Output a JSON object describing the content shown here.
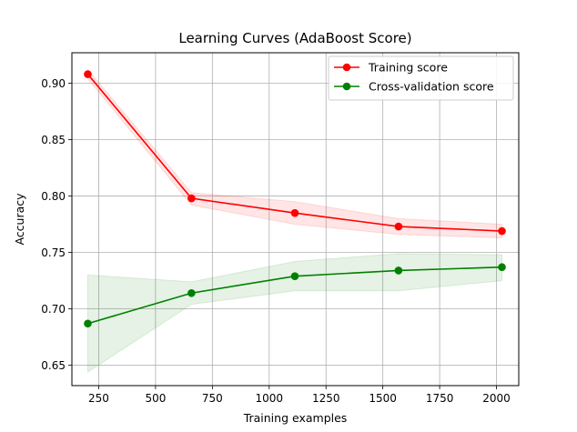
{
  "chart_data": {
    "type": "line",
    "title": "Learning Curves (AdaBoost Score)",
    "xlabel": "Training examples",
    "ylabel": "Accuracy",
    "xlim": [
      132,
      2098
    ],
    "ylim": [
      0.632,
      0.927
    ],
    "xticks": [
      250,
      500,
      750,
      1000,
      1250,
      1500,
      1750,
      2000
    ],
    "xtick_labels": [
      "250",
      "500",
      "750",
      "1000",
      "1250",
      "1500",
      "1750",
      "2000"
    ],
    "yticks": [
      0.65,
      0.7,
      0.75,
      0.8,
      0.85,
      0.9
    ],
    "ytick_labels": [
      "0.65",
      "0.70",
      "0.75",
      "0.80",
      "0.85",
      "0.90"
    ],
    "grid": true,
    "legend_position": "top-right",
    "x": [
      202,
      658,
      1113,
      1569,
      2024
    ],
    "series": [
      {
        "name": "Training score",
        "color": "#ff0000",
        "band_color": "#ff0000",
        "values": [
          0.908,
          0.798,
          0.785,
          0.773,
          0.769
        ],
        "lower": [
          0.904,
          0.792,
          0.775,
          0.766,
          0.763
        ],
        "upper": [
          0.912,
          0.803,
          0.795,
          0.78,
          0.775
        ]
      },
      {
        "name": "Cross-validation score",
        "color": "#008000",
        "band_color": "#008000",
        "values": [
          0.687,
          0.714,
          0.729,
          0.734,
          0.737
        ],
        "lower": [
          0.644,
          0.704,
          0.716,
          0.716,
          0.725
        ],
        "upper": [
          0.73,
          0.724,
          0.742,
          0.749,
          0.748
        ]
      }
    ]
  }
}
